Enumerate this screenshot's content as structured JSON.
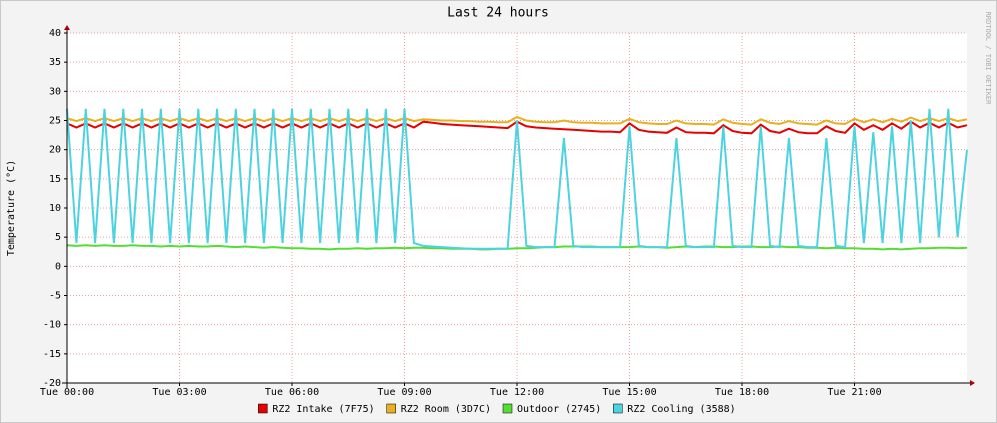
{
  "chart_data": {
    "type": "line",
    "title": "Last 24 hours",
    "y_label": "Temperature (°C)",
    "watermark": "RRDTOOL / TOBI OETIKER",
    "x": [
      0,
      0.25,
      0.5,
      0.75,
      1,
      1.25,
      1.5,
      1.75,
      2,
      2.25,
      2.5,
      2.75,
      3,
      3.25,
      3.5,
      3.75,
      4,
      4.25,
      4.5,
      4.75,
      5,
      5.25,
      5.5,
      5.75,
      6,
      6.25,
      6.5,
      6.75,
      7,
      7.25,
      7.5,
      7.75,
      8,
      8.25,
      8.5,
      8.75,
      9,
      9.25,
      9.5,
      9.75,
      10,
      10.25,
      10.5,
      10.75,
      11,
      11.25,
      11.5,
      11.75,
      12,
      12.25,
      12.5,
      12.75,
      13,
      13.25,
      13.5,
      13.75,
      14,
      14.25,
      14.5,
      14.75,
      15,
      15.25,
      15.5,
      15.75,
      16,
      16.25,
      16.5,
      16.75,
      17,
      17.25,
      17.5,
      17.75,
      18,
      18.25,
      18.5,
      18.75,
      19,
      19.25,
      19.5,
      19.75,
      20,
      20.25,
      20.5,
      20.75,
      21,
      21.25,
      21.5,
      21.75,
      22,
      22.25,
      22.5,
      22.75,
      23,
      23.25,
      23.5,
      23.75,
      24
    ],
    "xlim": [
      0,
      24
    ],
    "xticks": [
      {
        "value": 0,
        "label": "Tue 00:00"
      },
      {
        "value": 3,
        "label": "Tue 03:00"
      },
      {
        "value": 6,
        "label": "Tue 06:00"
      },
      {
        "value": 9,
        "label": "Tue 09:00"
      },
      {
        "value": 12,
        "label": "Tue 12:00"
      },
      {
        "value": 15,
        "label": "Tue 15:00"
      },
      {
        "value": 18,
        "label": "Tue 18:00"
      },
      {
        "value": 21,
        "label": "Tue 21:00"
      }
    ],
    "ylim": [
      -20,
      40
    ],
    "yticks": [
      -20,
      -15,
      -10,
      -5,
      0,
      5,
      10,
      15,
      20,
      25,
      30,
      35,
      40
    ],
    "grid": true,
    "legend": "bottom",
    "series": [
      {
        "name": "RZ2 Intake (7F75)",
        "color": "#e60000",
        "values": [
          24.5,
          23.8,
          24.5,
          23.8,
          24.5,
          23.8,
          24.5,
          23.8,
          24.5,
          23.8,
          24.5,
          23.8,
          24.5,
          23.8,
          24.5,
          23.8,
          24.5,
          23.8,
          24.5,
          23.8,
          24.5,
          23.8,
          24.5,
          23.8,
          24.5,
          23.8,
          24.5,
          23.8,
          24.5,
          23.8,
          24.5,
          23.8,
          24.5,
          23.8,
          24.5,
          23.8,
          24.5,
          23.8,
          24.8,
          24.6,
          24.4,
          24.3,
          24.2,
          24.1,
          24.0,
          23.9,
          23.8,
          23.7,
          24.8,
          24.0,
          23.8,
          23.7,
          23.6,
          23.5,
          23.4,
          23.3,
          23.2,
          23.1,
          23.1,
          23.0,
          24.5,
          23.4,
          23.1,
          23.0,
          22.9,
          23.8,
          23.0,
          22.9,
          22.9,
          22.8,
          24.2,
          23.2,
          22.9,
          22.8,
          24.3,
          23.2,
          22.9,
          23.6,
          23.0,
          22.8,
          22.8,
          24.0,
          23.2,
          22.9,
          24.5,
          23.4,
          24.2,
          23.4,
          24.5,
          23.6,
          24.8,
          23.8,
          24.6,
          23.8,
          24.6,
          23.8,
          24.2
        ]
      },
      {
        "name": "RZ2 Room (3D7C)",
        "color": "#e8b020",
        "values": [
          25.4,
          24.9,
          25.4,
          24.9,
          25.4,
          24.9,
          25.4,
          24.9,
          25.4,
          24.9,
          25.4,
          24.9,
          25.4,
          24.9,
          25.4,
          24.9,
          25.4,
          24.9,
          25.4,
          24.9,
          25.4,
          24.9,
          25.4,
          24.9,
          25.4,
          24.9,
          25.4,
          24.9,
          25.4,
          24.9,
          25.4,
          24.9,
          25.4,
          24.9,
          25.4,
          24.9,
          25.4,
          24.9,
          25.2,
          25.1,
          25.0,
          25.0,
          24.9,
          24.9,
          24.8,
          24.8,
          24.7,
          24.7,
          25.6,
          25.0,
          24.8,
          24.7,
          24.7,
          25.0,
          24.7,
          24.6,
          24.6,
          24.5,
          24.5,
          24.5,
          25.3,
          24.7,
          24.5,
          24.4,
          24.4,
          25.0,
          24.5,
          24.4,
          24.4,
          24.3,
          25.2,
          24.6,
          24.4,
          24.3,
          25.2,
          24.6,
          24.4,
          24.9,
          24.5,
          24.4,
          24.3,
          25.0,
          24.5,
          24.4,
          25.3,
          24.7,
          25.2,
          24.7,
          25.3,
          24.8,
          25.5,
          24.9,
          25.4,
          24.9,
          25.4,
          24.9,
          25.2
        ]
      },
      {
        "name": "Outdoor (2745)",
        "color": "#55dd33",
        "values": [
          3.6,
          3.5,
          3.6,
          3.5,
          3.6,
          3.5,
          3.5,
          3.6,
          3.5,
          3.5,
          3.4,
          3.5,
          3.4,
          3.5,
          3.4,
          3.4,
          3.5,
          3.4,
          3.3,
          3.4,
          3.3,
          3.2,
          3.3,
          3.2,
          3.1,
          3.1,
          3.0,
          3.0,
          2.9,
          3.0,
          3.0,
          3.1,
          3.0,
          3.1,
          3.1,
          3.2,
          3.1,
          3.2,
          3.2,
          3.1,
          3.1,
          3.0,
          3.0,
          3.0,
          2.9,
          2.9,
          3.0,
          3.0,
          3.1,
          3.1,
          3.2,
          3.3,
          3.3,
          3.4,
          3.4,
          3.4,
          3.4,
          3.3,
          3.3,
          3.3,
          3.3,
          3.4,
          3.3,
          3.3,
          3.2,
          3.3,
          3.4,
          3.3,
          3.4,
          3.4,
          3.3,
          3.3,
          3.4,
          3.4,
          3.3,
          3.3,
          3.4,
          3.3,
          3.3,
          3.2,
          3.2,
          3.1,
          3.2,
          3.1,
          3.1,
          3.0,
          3.0,
          2.9,
          3.0,
          2.9,
          3.0,
          3.1,
          3.1,
          3.2,
          3.2,
          3.1,
          3.2
        ]
      },
      {
        "name": "RZ2 Cooling (3588)",
        "color": "#4dd3e0",
        "values": [
          27,
          4,
          27,
          4,
          27,
          4,
          27,
          4,
          27,
          4,
          27,
          4,
          27,
          4,
          27,
          4,
          27,
          4,
          27,
          4,
          27,
          4,
          27,
          4,
          27,
          4,
          27,
          4,
          27,
          4,
          27,
          4,
          27,
          4,
          27,
          4,
          27,
          4,
          3.5,
          3.4,
          3.3,
          3.2,
          3.1,
          3.0,
          3.0,
          3.0,
          3.0,
          3.0,
          25,
          3.5,
          3.3,
          3.3,
          3.3,
          22,
          3.5,
          3.3,
          3.3,
          3.3,
          3.3,
          3.3,
          24,
          3.5,
          3.3,
          3.3,
          3.3,
          22,
          3.5,
          3.3,
          3.3,
          3.3,
          24,
          3.5,
          3.3,
          3.3,
          24,
          3.5,
          3.3,
          22,
          3.5,
          3.3,
          3.3,
          22,
          3.5,
          3.3,
          24,
          4,
          23,
          4,
          24,
          4,
          25,
          4,
          27,
          5,
          27,
          5,
          20
        ]
      }
    ]
  }
}
